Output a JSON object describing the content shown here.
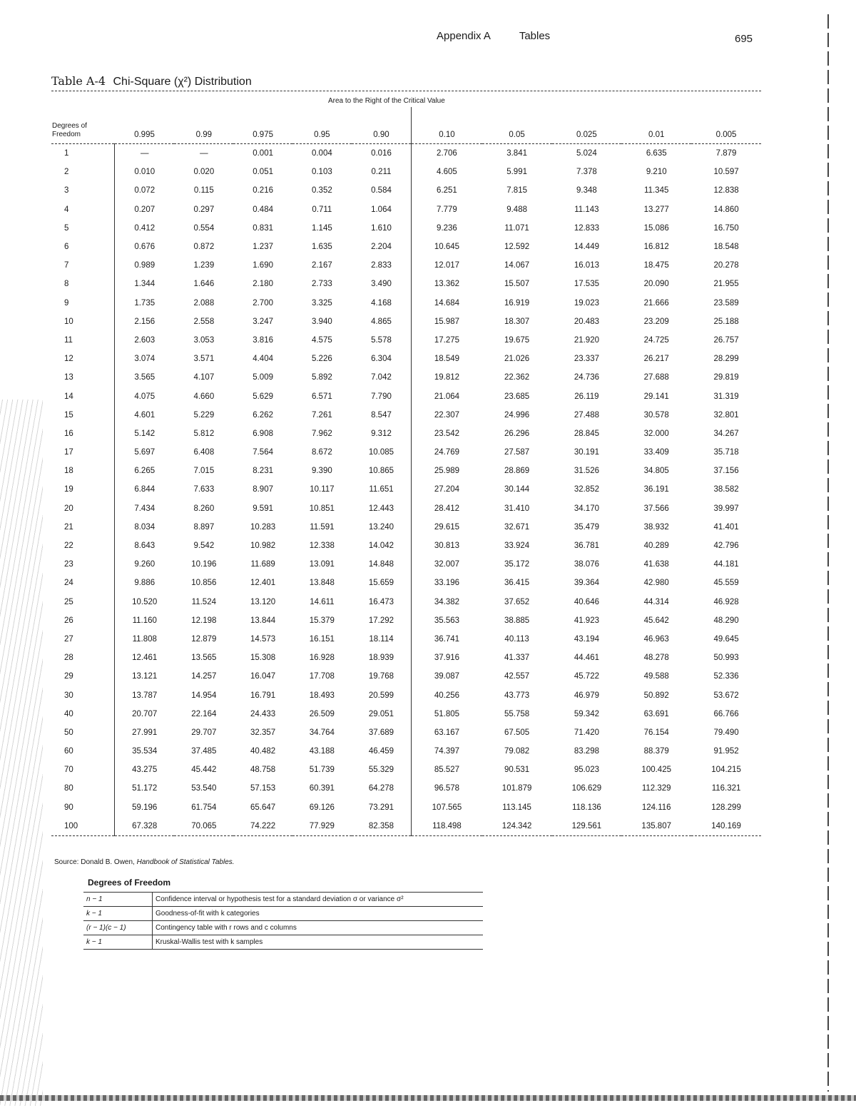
{
  "running_head": {
    "section": "Appendix A",
    "chapter": "Tables",
    "page": "695"
  },
  "title": {
    "label": "Table A-4",
    "text": "Chi-Square (χ²) Distribution"
  },
  "table": {
    "area_heading": "Area to the Right of the Critical Value",
    "df_heading": "Degrees of Freedom",
    "columns": [
      "0.995",
      "0.99",
      "0.975",
      "0.95",
      "0.90",
      "0.10",
      "0.05",
      "0.025",
      "0.01",
      "0.005"
    ],
    "rows": [
      [
        "1",
        "—",
        "—",
        "0.001",
        "0.004",
        "0.016",
        "2.706",
        "3.841",
        "5.024",
        "6.635",
        "7.879"
      ],
      [
        "2",
        "0.010",
        "0.020",
        "0.051",
        "0.103",
        "0.211",
        "4.605",
        "5.991",
        "7.378",
        "9.210",
        "10.597"
      ],
      [
        "3",
        "0.072",
        "0.115",
        "0.216",
        "0.352",
        "0.584",
        "6.251",
        "7.815",
        "9.348",
        "11.345",
        "12.838"
      ],
      [
        "4",
        "0.207",
        "0.297",
        "0.484",
        "0.711",
        "1.064",
        "7.779",
        "9.488",
        "11.143",
        "13.277",
        "14.860"
      ],
      [
        "5",
        "0.412",
        "0.554",
        "0.831",
        "1.145",
        "1.610",
        "9.236",
        "11.071",
        "12.833",
        "15.086",
        "16.750"
      ],
      [
        "6",
        "0.676",
        "0.872",
        "1.237",
        "1.635",
        "2.204",
        "10.645",
        "12.592",
        "14.449",
        "16.812",
        "18.548"
      ],
      [
        "7",
        "0.989",
        "1.239",
        "1.690",
        "2.167",
        "2.833",
        "12.017",
        "14.067",
        "16.013",
        "18.475",
        "20.278"
      ],
      [
        "8",
        "1.344",
        "1.646",
        "2.180",
        "2.733",
        "3.490",
        "13.362",
        "15.507",
        "17.535",
        "20.090",
        "21.955"
      ],
      [
        "9",
        "1.735",
        "2.088",
        "2.700",
        "3.325",
        "4.168",
        "14.684",
        "16.919",
        "19.023",
        "21.666",
        "23.589"
      ],
      [
        "10",
        "2.156",
        "2.558",
        "3.247",
        "3.940",
        "4.865",
        "15.987",
        "18.307",
        "20.483",
        "23.209",
        "25.188"
      ],
      [
        "11",
        "2.603",
        "3.053",
        "3.816",
        "4.575",
        "5.578",
        "17.275",
        "19.675",
        "21.920",
        "24.725",
        "26.757"
      ],
      [
        "12",
        "3.074",
        "3.571",
        "4.404",
        "5.226",
        "6.304",
        "18.549",
        "21.026",
        "23.337",
        "26.217",
        "28.299"
      ],
      [
        "13",
        "3.565",
        "4.107",
        "5.009",
        "5.892",
        "7.042",
        "19.812",
        "22.362",
        "24.736",
        "27.688",
        "29.819"
      ],
      [
        "14",
        "4.075",
        "4.660",
        "5.629",
        "6.571",
        "7.790",
        "21.064",
        "23.685",
        "26.119",
        "29.141",
        "31.319"
      ],
      [
        "15",
        "4.601",
        "5.229",
        "6.262",
        "7.261",
        "8.547",
        "22.307",
        "24.996",
        "27.488",
        "30.578",
        "32.801"
      ],
      [
        "16",
        "5.142",
        "5.812",
        "6.908",
        "7.962",
        "9.312",
        "23.542",
        "26.296",
        "28.845",
        "32.000",
        "34.267"
      ],
      [
        "17",
        "5.697",
        "6.408",
        "7.564",
        "8.672",
        "10.085",
        "24.769",
        "27.587",
        "30.191",
        "33.409",
        "35.718"
      ],
      [
        "18",
        "6.265",
        "7.015",
        "8.231",
        "9.390",
        "10.865",
        "25.989",
        "28.869",
        "31.526",
        "34.805",
        "37.156"
      ],
      [
        "19",
        "6.844",
        "7.633",
        "8.907",
        "10.117",
        "11.651",
        "27.204",
        "30.144",
        "32.852",
        "36.191",
        "38.582"
      ],
      [
        "20",
        "7.434",
        "8.260",
        "9.591",
        "10.851",
        "12.443",
        "28.412",
        "31.410",
        "34.170",
        "37.566",
        "39.997"
      ],
      [
        "21",
        "8.034",
        "8.897",
        "10.283",
        "11.591",
        "13.240",
        "29.615",
        "32.671",
        "35.479",
        "38.932",
        "41.401"
      ],
      [
        "22",
        "8.643",
        "9.542",
        "10.982",
        "12.338",
        "14.042",
        "30.813",
        "33.924",
        "36.781",
        "40.289",
        "42.796"
      ],
      [
        "23",
        "9.260",
        "10.196",
        "11.689",
        "13.091",
        "14.848",
        "32.007",
        "35.172",
        "38.076",
        "41.638",
        "44.181"
      ],
      [
        "24",
        "9.886",
        "10.856",
        "12.401",
        "13.848",
        "15.659",
        "33.196",
        "36.415",
        "39.364",
        "42.980",
        "45.559"
      ],
      [
        "25",
        "10.520",
        "11.524",
        "13.120",
        "14.611",
        "16.473",
        "34.382",
        "37.652",
        "40.646",
        "44.314",
        "46.928"
      ],
      [
        "26",
        "11.160",
        "12.198",
        "13.844",
        "15.379",
        "17.292",
        "35.563",
        "38.885",
        "41.923",
        "45.642",
        "48.290"
      ],
      [
        "27",
        "11.808",
        "12.879",
        "14.573",
        "16.151",
        "18.114",
        "36.741",
        "40.113",
        "43.194",
        "46.963",
        "49.645"
      ],
      [
        "28",
        "12.461",
        "13.565",
        "15.308",
        "16.928",
        "18.939",
        "37.916",
        "41.337",
        "44.461",
        "48.278",
        "50.993"
      ],
      [
        "29",
        "13.121",
        "14.257",
        "16.047",
        "17.708",
        "19.768",
        "39.087",
        "42.557",
        "45.722",
        "49.588",
        "52.336"
      ],
      [
        "30",
        "13.787",
        "14.954",
        "16.791",
        "18.493",
        "20.599",
        "40.256",
        "43.773",
        "46.979",
        "50.892",
        "53.672"
      ],
      [
        "40",
        "20.707",
        "22.164",
        "24.433",
        "26.509",
        "29.051",
        "51.805",
        "55.758",
        "59.342",
        "63.691",
        "66.766"
      ],
      [
        "50",
        "27.991",
        "29.707",
        "32.357",
        "34.764",
        "37.689",
        "63.167",
        "67.505",
        "71.420",
        "76.154",
        "79.490"
      ],
      [
        "60",
        "35.534",
        "37.485",
        "40.482",
        "43.188",
        "46.459",
        "74.397",
        "79.082",
        "83.298",
        "88.379",
        "91.952"
      ],
      [
        "70",
        "43.275",
        "45.442",
        "48.758",
        "51.739",
        "55.329",
        "85.527",
        "90.531",
        "95.023",
        "100.425",
        "104.215"
      ],
      [
        "80",
        "51.172",
        "53.540",
        "57.153",
        "60.391",
        "64.278",
        "96.578",
        "101.879",
        "106.629",
        "112.329",
        "116.321"
      ],
      [
        "90",
        "59.196",
        "61.754",
        "65.647",
        "69.126",
        "73.291",
        "107.565",
        "113.145",
        "118.136",
        "124.116",
        "128.299"
      ],
      [
        "100",
        "67.328",
        "70.065",
        "74.222",
        "77.929",
        "82.358",
        "118.498",
        "124.342",
        "129.561",
        "135.807",
        "140.169"
      ]
    ]
  },
  "source": {
    "prefix": "Source: Donald B. Owen, ",
    "book": "Handbook of Statistical Tables."
  },
  "degrees_of_freedom": {
    "title": "Degrees of Freedom",
    "rows": [
      {
        "formula": "n − 1",
        "use": "Confidence interval or hypothesis test for a standard deviation σ or variance σ²"
      },
      {
        "formula": "k − 1",
        "use": "Goodness-of-fit with k categories"
      },
      {
        "formula": "(r − 1)(c − 1)",
        "use": "Contingency table with r rows and c columns"
      },
      {
        "formula": "k − 1",
        "use": "Kruskal-Wallis test with k samples"
      }
    ]
  }
}
